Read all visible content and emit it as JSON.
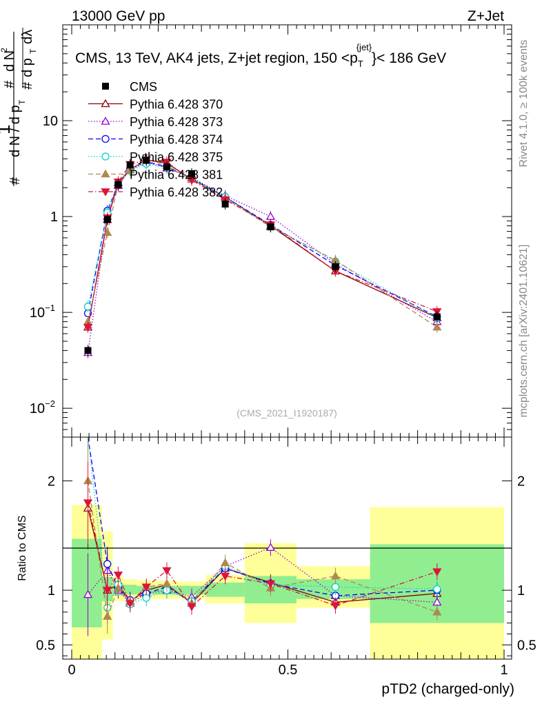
{
  "header": {
    "left": "13000 GeV pp",
    "right": "Z+Jet"
  },
  "side_labels": {
    "rivet": "Rivet 4.1.0, ≥ 100k events",
    "mcplots": "mcplots.cern.ch [arXiv:2401.10621]"
  },
  "colors": {
    "CMS": "#000000",
    "370": "#8b0000",
    "373": "#9400d3",
    "374": "#0000ff",
    "375": "#00d2c8",
    "381": "#b08850",
    "382": "#dc143c",
    "band_inner": "#90ee90",
    "band_outer": "#ffff99"
  },
  "chart_data": [
    {
      "type": "scatter",
      "title": "CMS, 13 TeV, AK4 jets, Z+jet region, 150 < pT^jet < 186 GeV",
      "title_main": "CMS, 13 TeV, AK4 jets, Z+jet region, 150 <p",
      "title_sup": "{jet}",
      "title_sub": "T",
      "title_end": "}< 186 GeV",
      "ylabel": "1/dN/dpT dN^2/dpT dλ",
      "yscale": "log",
      "xlim": [
        0,
        1
      ],
      "ylim": [
        0.005,
        100
      ],
      "y_ticks": [
        {
          "value": 0.01,
          "base": "10",
          "exp": "−2"
        },
        {
          "value": 0.1,
          "base": "10",
          "exp": "−1"
        },
        {
          "value": 1,
          "label": "1"
        },
        {
          "value": 10,
          "label": "10"
        }
      ],
      "watermark": "(CMS_2021_I1920187)",
      "x": [
        0.0375,
        0.0825,
        0.1075,
        0.135,
        0.1725,
        0.22,
        0.2775,
        0.355,
        0.46,
        0.61,
        0.845
      ],
      "series": [
        {
          "name": "CMS",
          "key": "CMS",
          "marker": "square",
          "dash": "",
          "values": [
            0.04,
            0.93,
            2.15,
            3.45,
            3.85,
            3.3,
            2.8,
            1.35,
            0.78,
            0.3,
            0.09
          ],
          "legend": "CMS"
        },
        {
          "name": "Pythia 6.428 370",
          "key": "370",
          "marker": "triangle-open",
          "dash": "",
          "values": [
            0.07,
            0.93,
            2.25,
            3.1,
            3.9,
            3.6,
            2.45,
            1.6,
            0.8,
            0.27,
            0.088
          ],
          "legend": "Pythia 6.428 370"
        },
        {
          "name": "Pythia 6.428 373",
          "key": "373",
          "marker": "triangle-open",
          "dash": "1.5,2.5",
          "values": [
            0.038,
            1.0,
            2.1,
            3.05,
            3.7,
            3.2,
            2.55,
            1.65,
            1.0,
            0.32,
            0.08
          ],
          "legend": "Pythia 6.428 373"
        },
        {
          "name": "Pythia 6.428 374",
          "key": "374",
          "marker": "circle-open",
          "dash": "7,4",
          "values": [
            0.098,
            1.15,
            2.2,
            3.15,
            3.75,
            3.3,
            2.5,
            1.6,
            0.82,
            0.31,
            0.09
          ],
          "legend": "Pythia 6.428 374"
        },
        {
          "name": "Pythia 6.428 375",
          "key": "375",
          "marker": "circle-open",
          "dash": "1.5,2.5",
          "values": [
            0.115,
            1.1,
            2.25,
            3.0,
            3.55,
            3.25,
            2.5,
            1.6,
            0.8,
            0.34,
            0.088
          ],
          "legend": "Pythia 6.428 375"
        },
        {
          "name": "Pythia 6.428 381",
          "key": "381",
          "marker": "triangle-filled",
          "dash": "7,4",
          "values": [
            0.08,
            0.68,
            2.15,
            3.05,
            3.95,
            3.4,
            2.45,
            1.55,
            0.78,
            0.35,
            0.07
          ],
          "legend": "Pythia 6.428 381"
        },
        {
          "name": "Pythia 6.428 382",
          "key": "382",
          "marker": "triangledown-filled",
          "dash": "7,3,1.5,3",
          "values": [
            0.07,
            0.97,
            2.3,
            3.5,
            3.9,
            3.7,
            2.4,
            1.5,
            0.82,
            0.27,
            0.102
          ],
          "legend": "Pythia 6.428 382"
        }
      ]
    },
    {
      "type": "scatter",
      "ylabel": "Ratio to CMS",
      "xlabel": "pTD2 (charged-only)",
      "xlim": [
        0,
        1
      ],
      "ylim": [
        0.37,
        2.4
      ],
      "y_ticks_left": [
        "0.5",
        "1",
        "2"
      ],
      "y_ticks_right": [
        "0.5",
        "1",
        "2"
      ],
      "y_tick_values": [
        0.5,
        1,
        2
      ],
      "x_tick_labels": [
        "0",
        "0.5",
        "1"
      ],
      "x_tick_values": [
        0,
        0.5,
        1
      ],
      "bands": [
        {
          "x0": 0.0,
          "x1": 0.07,
          "inner": [
            0.66,
            1.47
          ],
          "outer": [
            0.35,
            1.78
          ]
        },
        {
          "x0": 0.07,
          "x1": 0.095,
          "inner": [
            0.9,
            1.12
          ],
          "outer": [
            0.55,
            1.54
          ]
        },
        {
          "x0": 0.095,
          "x1": 0.12,
          "inner": [
            0.95,
            1.06
          ],
          "outer": [
            0.9,
            1.12
          ]
        },
        {
          "x0": 0.12,
          "x1": 0.15,
          "inner": [
            0.96,
            1.05
          ],
          "outer": [
            0.91,
            1.1
          ]
        },
        {
          "x0": 0.15,
          "x1": 0.195,
          "inner": [
            0.96,
            1.04
          ],
          "outer": [
            0.92,
            1.09
          ]
        },
        {
          "x0": 0.195,
          "x1": 0.245,
          "inner": [
            0.96,
            1.04
          ],
          "outer": [
            0.92,
            1.09
          ]
        },
        {
          "x0": 0.245,
          "x1": 0.31,
          "inner": [
            0.96,
            1.04
          ],
          "outer": [
            0.92,
            1.08
          ]
        },
        {
          "x0": 0.31,
          "x1": 0.4,
          "inner": [
            0.94,
            1.07
          ],
          "outer": [
            0.88,
            1.14
          ]
        },
        {
          "x0": 0.4,
          "x1": 0.52,
          "inner": [
            0.88,
            1.13
          ],
          "outer": [
            0.7,
            1.43
          ]
        },
        {
          "x0": 0.52,
          "x1": 0.69,
          "inner": [
            0.92,
            1.1
          ],
          "outer": [
            0.84,
            1.22
          ]
        },
        {
          "x0": 0.69,
          "x1": 1.0,
          "inner": [
            0.7,
            1.42
          ],
          "outer": [
            0.35,
            1.76
          ]
        }
      ],
      "series": [
        {
          "key": "370",
          "marker": "triangle-open",
          "dash": "",
          "values": [
            1.75,
            1.0,
            1.05,
            0.9,
            1.0,
            1.05,
            0.88,
            1.2,
            1.07,
            0.89,
            0.97
          ]
        },
        {
          "key": "373",
          "marker": "triangle-open",
          "dash": "1.5,2.5",
          "values": [
            0.96,
            1.18,
            1.0,
            0.88,
            0.97,
            1.0,
            0.94,
            1.22,
            1.39,
            0.95,
            0.89
          ]
        },
        {
          "key": "374",
          "marker": "circle-open",
          "dash": "7,4",
          "values": [
            2.42,
            1.24,
            1.02,
            0.91,
            0.97,
            1.03,
            0.9,
            1.2,
            1.06,
            0.95,
            1.0
          ]
        },
        {
          "key": "375",
          "marker": "circle-open",
          "dash": "1.5,2.5",
          "values": [
            2.45,
            0.84,
            1.05,
            0.87,
            0.93,
            1.0,
            0.9,
            1.22,
            1.05,
            1.03,
            1.01
          ]
        },
        {
          "key": "381",
          "marker": "triangle-filled",
          "dash": "7,4",
          "values": [
            2.0,
            0.76,
            1.02,
            0.89,
            1.03,
            1.06,
            0.88,
            1.25,
            1.02,
            1.13,
            0.8
          ]
        },
        {
          "key": "382",
          "marker": "triangledown-filled",
          "dash": "7,3,1.5,3",
          "values": [
            1.8,
            1.0,
            1.14,
            0.88,
            1.03,
            1.18,
            0.85,
            1.13,
            1.06,
            0.86,
            1.17
          ]
        }
      ]
    }
  ]
}
